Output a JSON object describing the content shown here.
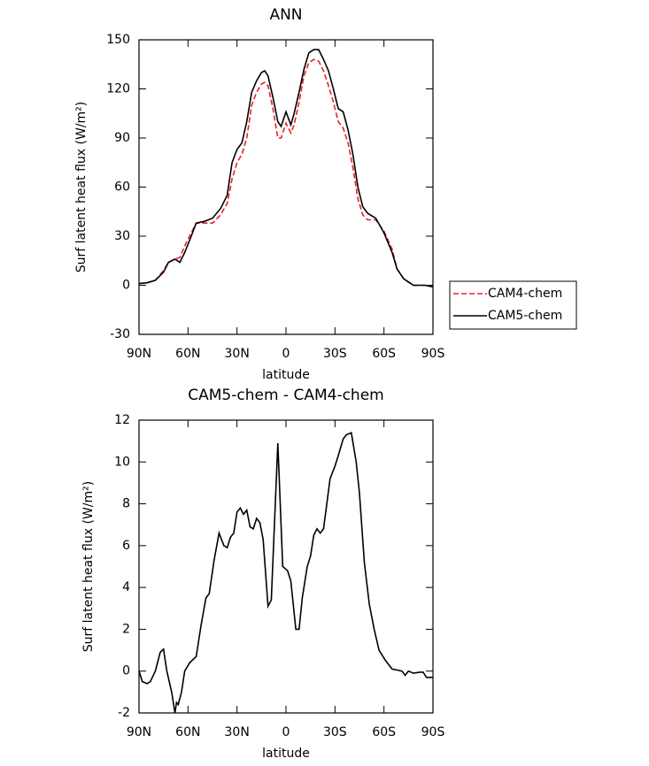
{
  "chart_data": [
    {
      "type": "line",
      "title": "ANN",
      "xlabel": "latitude",
      "ylabel": "Surf latent heat flux (W/m²)",
      "x": [
        90,
        85,
        80,
        75,
        72,
        68,
        65,
        62,
        58,
        55,
        50,
        45,
        40,
        36,
        33,
        30,
        27,
        24,
        21,
        18,
        15,
        13,
        11,
        8,
        5,
        3,
        0,
        -3,
        -5,
        -8,
        -11,
        -14,
        -17,
        -20,
        -23,
        -26,
        -29,
        -32,
        -35,
        -38,
        -41,
        -44,
        -47,
        -50,
        -55,
        -60,
        -65,
        -68,
        -72,
        -75,
        -78,
        -82,
        -85,
        -90
      ],
      "series": [
        {
          "name": "CAM4-chem",
          "color": "#e8202a",
          "linestyle": "dashed",
          "values": [
            1,
            1.5,
            3,
            9,
            14,
            16,
            17,
            24,
            32,
            38,
            38,
            38,
            43,
            50,
            65,
            75,
            80,
            90,
            110,
            118,
            123,
            124,
            122,
            108,
            90,
            90,
            99,
            93,
            98,
            112,
            128,
            136,
            138,
            137,
            131,
            122,
            112,
            100,
            96,
            87,
            72,
            53,
            43,
            40,
            40,
            33,
            22,
            10,
            4,
            2,
            0,
            0,
            0,
            -1
          ]
        },
        {
          "name": "CAM5-chem",
          "color": "#000000",
          "linestyle": "solid",
          "values": [
            1,
            1.5,
            3,
            8,
            14,
            16,
            14,
            20,
            30,
            38,
            39,
            41,
            47,
            55,
            75,
            83,
            87,
            100,
            118,
            125,
            130,
            131,
            128,
            115,
            100,
            97,
            106,
            98,
            105,
            118,
            132,
            142,
            144,
            144,
            138,
            131,
            120,
            108,
            106,
            95,
            80,
            60,
            48,
            44,
            41,
            32,
            20,
            10,
            4,
            2,
            0,
            0,
            0,
            -1
          ]
        }
      ],
      "xlim": [
        90,
        -90
      ],
      "xticks": [
        {
          "value": 90,
          "label": "90N"
        },
        {
          "value": 60,
          "label": "60N"
        },
        {
          "value": 30,
          "label": "30N"
        },
        0,
        {
          "value": -30,
          "label": "30S"
        },
        {
          "value": -60,
          "label": "60S"
        },
        {
          "value": -90,
          "label": "90S"
        }
      ],
      "ylim": [
        -30,
        150
      ],
      "yticks": [
        -30,
        0,
        30,
        60,
        90,
        120,
        150
      ],
      "legend": "right"
    },
    {
      "type": "line",
      "title": "CAM5-chem - CAM4-chem",
      "xlabel": "latitude",
      "ylabel": "Surf latent heat flux (W/m²)",
      "x": [
        90,
        88,
        85,
        83,
        80,
        77,
        75,
        73,
        70,
        68,
        67,
        66,
        64,
        62,
        59,
        55,
        52,
        49,
        47,
        44,
        41,
        38,
        36,
        34,
        32,
        30,
        28,
        26,
        24,
        22,
        20,
        18,
        16,
        14,
        11,
        9,
        5,
        2,
        -1,
        -3,
        -6,
        -8,
        -10,
        -13,
        -15,
        -17,
        -19,
        -21,
        -23,
        -25,
        -27,
        -30,
        -32,
        -35,
        -37,
        -40,
        -43,
        -45,
        -48,
        -51,
        -54,
        -57,
        -61,
        -65,
        -68,
        -71,
        -73,
        -75,
        -78,
        -82,
        -84,
        -86,
        -90
      ],
      "series": [
        {
          "color": "#000000",
          "linestyle": "solid",
          "values": [
            0,
            -0.5,
            -0.6,
            -0.5,
            0,
            0.9,
            1.05,
            0,
            -1,
            -2,
            -1.5,
            -1.6,
            -1,
            0,
            0.4,
            0.7,
            2.2,
            3.5,
            3.7,
            5.3,
            6.6,
            6,
            5.9,
            6.4,
            6.6,
            7.6,
            7.8,
            7.5,
            7.7,
            6.9,
            6.8,
            7.3,
            7.1,
            6.3,
            3.1,
            3.4,
            10.9,
            5,
            4.8,
            4.3,
            2,
            2,
            3.5,
            5,
            5.5,
            6.5,
            6.8,
            6.6,
            6.8,
            8,
            9.2,
            9.8,
            10.3,
            11.1,
            11.3,
            11.4,
            10,
            8.5,
            5.2,
            3.2,
            2,
            1,
            0.5,
            0.1,
            0.05,
            0,
            -0.2,
            0,
            -0.1,
            -0.05,
            -0.05,
            -0.3,
            -0.3
          ]
        }
      ],
      "xlim": [
        90,
        -90
      ],
      "xticks": [
        {
          "value": 90,
          "label": "90N"
        },
        {
          "value": 60,
          "label": "60N"
        },
        {
          "value": 30,
          "label": "30N"
        },
        0,
        {
          "value": -30,
          "label": "30S"
        },
        {
          "value": -60,
          "label": "60S"
        },
        {
          "value": -90,
          "label": "90S"
        }
      ],
      "ylim": [
        -2,
        12
      ],
      "yticks": [
        -2,
        0,
        2,
        4,
        6,
        8,
        10,
        12
      ]
    }
  ]
}
